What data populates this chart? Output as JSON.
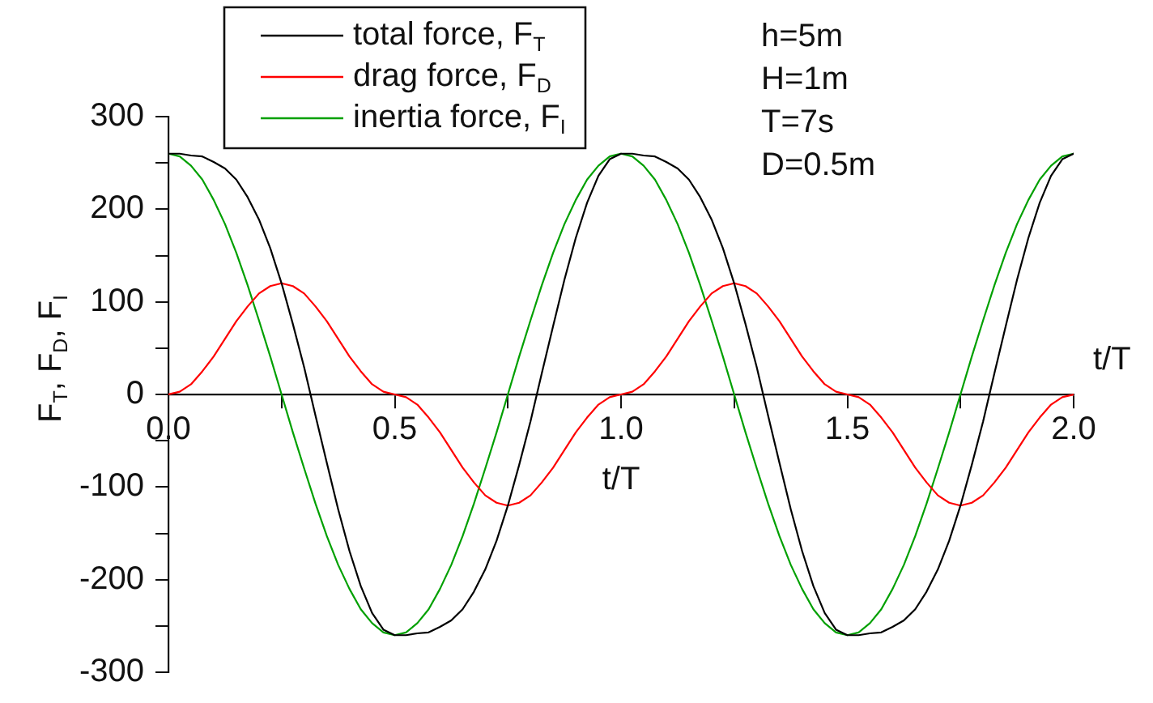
{
  "chart_data": {
    "type": "line",
    "xlabel": "t/T",
    "ylabel": "F$_{T}$, F$_{D}$, F$_{I}$",
    "annotations": [
      "h=5m",
      "H=1m",
      "T=7s",
      "D=0.5m",
      {
        "text": "t/T",
        "x": 2,
        "y": 0
      }
    ],
    "x": [
      0,
      0.025,
      0.05,
      0.075,
      0.1,
      0.125,
      0.15,
      0.175,
      0.2,
      0.225,
      0.25,
      0.275,
      0.3,
      0.325,
      0.35,
      0.375,
      0.4,
      0.425,
      0.45,
      0.475,
      0.5,
      0.525,
      0.55,
      0.575,
      0.6,
      0.625,
      0.65,
      0.675,
      0.7,
      0.725,
      0.75,
      0.775,
      0.8,
      0.825,
      0.85,
      0.875,
      0.9,
      0.925,
      0.95,
      0.975,
      1,
      1.025,
      1.05,
      1.075,
      1.1,
      1.125,
      1.15,
      1.175,
      1.2,
      1.225,
      1.25,
      1.275,
      1.3,
      1.325,
      1.35,
      1.375,
      1.4,
      1.425,
      1.45,
      1.475,
      1.5,
      1.525,
      1.55,
      1.575,
      1.6,
      1.625,
      1.65,
      1.675,
      1.7,
      1.725,
      1.75,
      1.775,
      1.8,
      1.825,
      1.85,
      1.875,
      1.9,
      1.925,
      1.95,
      1.975,
      2
    ],
    "series": [
      {
        "name": "total force, F$_{T}$",
        "color": "#000000",
        "values": [
          260,
          260,
          258,
          257,
          251,
          244,
          232,
          213,
          189,
          158,
          120,
          76,
          29,
          -23,
          -74,
          -124,
          -169,
          -207,
          -236,
          -254,
          -260,
          -260,
          -258,
          -257,
          -251,
          -244,
          -232,
          -213,
          -189,
          -158,
          -120,
          -76,
          -29,
          23,
          74,
          124,
          169,
          207,
          236,
          254,
          260,
          260,
          258,
          257,
          251,
          244,
          232,
          213,
          189,
          158,
          120,
          76,
          29,
          -23,
          -74,
          -124,
          -169,
          -207,
          -236,
          -254,
          -260,
          -260,
          -258,
          -257,
          -251,
          -244,
          -232,
          -213,
          -189,
          -158,
          -120,
          -76,
          -29,
          23,
          74,
          124,
          169,
          207,
          236,
          254,
          260
        ]
      },
      {
        "name": "drag force, F$_{D}$",
        "color": "#ff0000",
        "values": [
          0,
          3,
          11,
          25,
          41,
          60,
          79,
          95,
          109,
          117,
          120,
          117,
          109,
          95,
          79,
          60,
          41,
          25,
          11,
          3,
          0,
          -3,
          -11,
          -25,
          -41,
          -60,
          -79,
          -95,
          -109,
          -117,
          -120,
          -117,
          -109,
          -95,
          -79,
          -60,
          -41,
          -25,
          -11,
          -3,
          0,
          3,
          11,
          25,
          41,
          60,
          79,
          95,
          109,
          117,
          120,
          117,
          109,
          95,
          79,
          60,
          41,
          25,
          11,
          3,
          0,
          -3,
          -11,
          -25,
          -41,
          -60,
          -79,
          -95,
          -109,
          -117,
          -120,
          -117,
          -109,
          -95,
          -79,
          -60,
          -41,
          -25,
          -11,
          -3,
          0
        ]
      },
      {
        "name": "inertia force, F$_{I}$",
        "color": "#00a000",
        "values": [
          260,
          257,
          247,
          232,
          210,
          184,
          153,
          118,
          80,
          41,
          0,
          -41,
          -80,
          -118,
          -153,
          -184,
          -210,
          -232,
          -247,
          -257,
          -260,
          -257,
          -247,
          -232,
          -210,
          -184,
          -153,
          -118,
          -80,
          -41,
          0,
          41,
          80,
          118,
          153,
          184,
          210,
          232,
          247,
          257,
          260,
          257,
          247,
          232,
          210,
          184,
          153,
          118,
          80,
          41,
          0,
          -41,
          -80,
          -118,
          -153,
          -184,
          -210,
          -232,
          -247,
          -257,
          -260,
          -257,
          -247,
          -232,
          -210,
          -184,
          -153,
          -118,
          -80,
          -41,
          0,
          41,
          80,
          118,
          153,
          184,
          210,
          232,
          247,
          257,
          260
        ]
      }
    ],
    "xlim": [
      0,
      2
    ],
    "ylim": [
      -300,
      300
    ],
    "xticks": [
      {
        "value": 0,
        "label": "0.0"
      },
      {
        "value": 0.25,
        "label": null
      },
      0.5,
      {
        "value": 0.75,
        "label": null
      },
      {
        "value": 1,
        "label": "1.0"
      },
      {
        "value": 1.25,
        "label": null
      },
      1.5,
      {
        "value": 1.75,
        "label": null
      },
      {
        "value": 2,
        "label": "2.0"
      }
    ],
    "yticks": [
      -300,
      {
        "value": -250,
        "label": null
      },
      -200,
      {
        "value": -150,
        "label": null
      },
      -100,
      {
        "value": -50,
        "label": null
      },
      0,
      {
        "value": 50,
        "label": null
      },
      100,
      {
        "value": 150,
        "label": null
      },
      200,
      {
        "value": 250,
        "label": null
      },
      300
    ],
    "legend": "top left"
  }
}
